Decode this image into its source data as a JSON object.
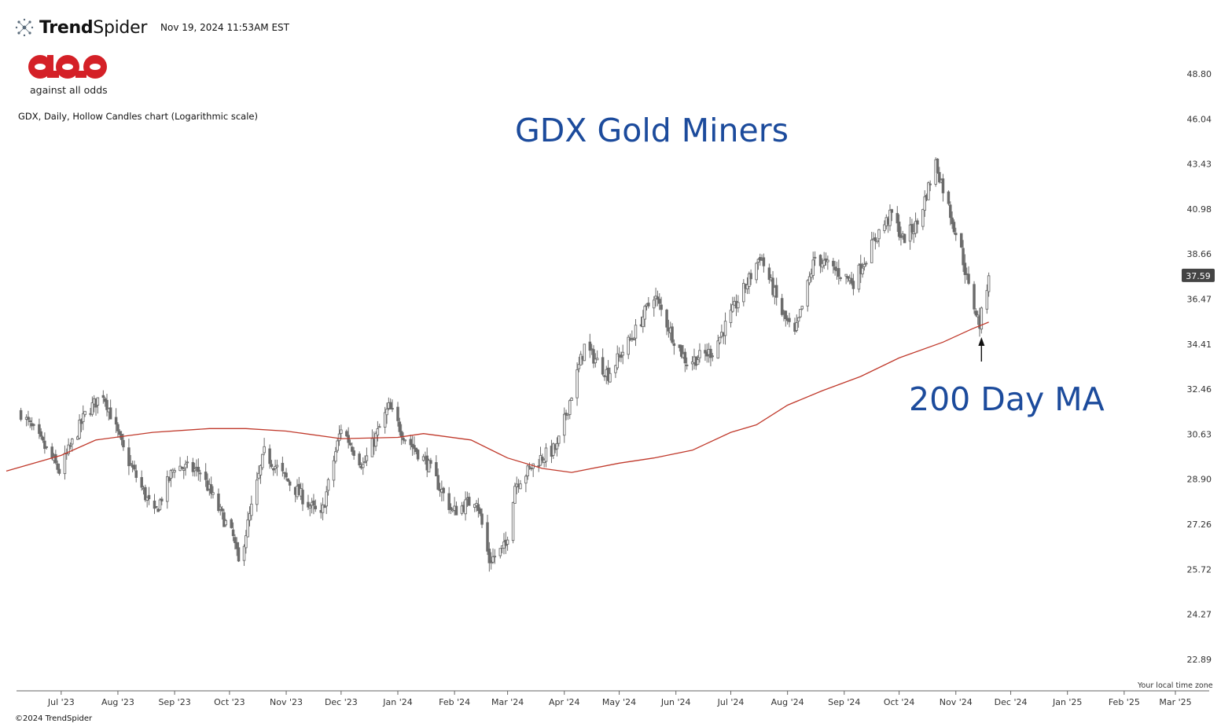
{
  "header": {
    "brand_prefix": "Trend",
    "brand_suffix": "Spider",
    "timestamp": "Nov 19, 2024 11:53AM EST",
    "logo_caption": "against all odds",
    "chart_description": "GDX, Daily, Hollow Candles chart (Logarithmic scale)"
  },
  "annotations": {
    "headline": "GDX Gold Miners",
    "ma_label": "200 Day MA",
    "timezone_note": "Your local time zone",
    "copyright": "©2024 TrendSpider"
  },
  "colors": {
    "headline": "#1c4b9c",
    "ma_line": "#c0392b",
    "candle": "#6b6b6b",
    "logo_red": "#d42027",
    "price_tag": "#444444"
  },
  "chart_data": {
    "type": "candlestick",
    "symbol": "GDX",
    "interval": "Daily",
    "scale": "log",
    "y_ticks": [
      22.89,
      24.27,
      25.72,
      27.26,
      28.9,
      30.63,
      32.46,
      34.41,
      36.47,
      38.66,
      40.98,
      43.43,
      46.04,
      48.8
    ],
    "y_tick_labels": [
      "22.89",
      "24.27",
      "25.72",
      "27.26",
      "28.90",
      "30.63",
      "32.46",
      "34.41",
      "36.47",
      "38.66",
      "40.98",
      "43.43",
      "46.04",
      "48.80"
    ],
    "x_tick_labels": [
      "Jul '23",
      "Aug '23",
      "Sep '23",
      "Oct '23",
      "Nov '23",
      "Dec '23",
      "Jan '24",
      "Feb '24",
      "Mar '24",
      "Apr '24",
      "May '24",
      "Jun '24",
      "Jul '24",
      "Aug '24",
      "Sep '24",
      "Oct '24",
      "Nov '24",
      "Dec '24",
      "Jan '25",
      "Feb '25",
      "Mar '25"
    ],
    "last_price": "37.59",
    "close_series": {
      "name": "GDX close (approx.)",
      "points": [
        [
          "2023-06-09",
          31.5
        ],
        [
          "2023-06-23",
          30.0
        ],
        [
          "2023-06-30",
          29.2
        ],
        [
          "2023-07-14",
          31.4
        ],
        [
          "2023-07-24",
          32.3
        ],
        [
          "2023-08-04",
          30.0
        ],
        [
          "2023-08-21",
          27.6
        ],
        [
          "2023-09-01",
          29.4
        ],
        [
          "2023-09-15",
          29.2
        ],
        [
          "2023-09-25",
          27.8
        ],
        [
          "2023-10-03",
          26.8
        ],
        [
          "2023-10-06",
          25.9
        ],
        [
          "2023-10-20",
          29.9
        ],
        [
          "2023-11-01",
          28.9
        ],
        [
          "2023-11-13",
          28.0
        ],
        [
          "2023-11-20",
          27.5
        ],
        [
          "2023-12-01",
          30.9
        ],
        [
          "2023-12-13",
          29.4
        ],
        [
          "2023-12-27",
          31.7
        ],
        [
          "2024-01-05",
          30.5
        ],
        [
          "2024-01-17",
          29.5
        ],
        [
          "2024-01-31",
          27.7
        ],
        [
          "2024-02-13",
          28.2
        ],
        [
          "2024-02-20",
          26.0
        ],
        [
          "2024-02-29",
          26.5
        ],
        [
          "2024-03-05",
          28.7
        ],
        [
          "2024-03-19",
          29.7
        ],
        [
          "2024-03-28",
          30.1
        ],
        [
          "2024-04-12",
          34.3
        ],
        [
          "2024-04-25",
          33.1
        ],
        [
          "2024-05-10",
          35.0
        ],
        [
          "2024-05-20",
          36.7
        ],
        [
          "2024-05-30",
          34.8
        ],
        [
          "2024-06-07",
          33.6
        ],
        [
          "2024-06-21",
          34.1
        ],
        [
          "2024-07-12",
          37.6
        ],
        [
          "2024-07-17",
          38.6
        ],
        [
          "2024-07-29",
          35.8
        ],
        [
          "2024-08-05",
          34.8
        ],
        [
          "2024-08-16",
          38.5
        ],
        [
          "2024-09-06",
          37.3
        ],
        [
          "2024-09-20",
          39.8
        ],
        [
          "2024-09-27",
          40.7
        ],
        [
          "2024-10-03",
          39.4
        ],
        [
          "2024-10-11",
          40.2
        ],
        [
          "2024-10-21",
          43.5
        ],
        [
          "2024-10-25",
          42.1
        ],
        [
          "2024-11-04",
          38.8
        ],
        [
          "2024-11-08",
          37.0
        ],
        [
          "2024-11-14",
          35.3
        ],
        [
          "2024-11-19",
          37.59
        ]
      ]
    },
    "ma_series": {
      "name": "200 Day MA",
      "points": [
        [
          "2023-06-01",
          29.2
        ],
        [
          "2023-07-01",
          29.8
        ],
        [
          "2023-07-20",
          30.4
        ],
        [
          "2023-08-20",
          30.7
        ],
        [
          "2023-09-20",
          30.85
        ],
        [
          "2023-10-10",
          30.85
        ],
        [
          "2023-11-01",
          30.75
        ],
        [
          "2023-12-01",
          30.45
        ],
        [
          "2024-01-01",
          30.5
        ],
        [
          "2024-01-15",
          30.65
        ],
        [
          "2024-02-10",
          30.4
        ],
        [
          "2024-03-01",
          29.7
        ],
        [
          "2024-03-20",
          29.3
        ],
        [
          "2024-04-05",
          29.15
        ],
        [
          "2024-05-01",
          29.5
        ],
        [
          "2024-05-20",
          29.7
        ],
        [
          "2024-06-10",
          30.0
        ],
        [
          "2024-07-01",
          30.7
        ],
        [
          "2024-07-15",
          31.0
        ],
        [
          "2024-08-01",
          31.8
        ],
        [
          "2024-08-20",
          32.4
        ],
        [
          "2024-09-10",
          33.0
        ],
        [
          "2024-10-01",
          33.8
        ],
        [
          "2024-10-25",
          34.5
        ],
        [
          "2024-11-10",
          35.1
        ],
        [
          "2024-11-19",
          35.4
        ]
      ]
    },
    "arrow_date": "2024-11-15"
  }
}
